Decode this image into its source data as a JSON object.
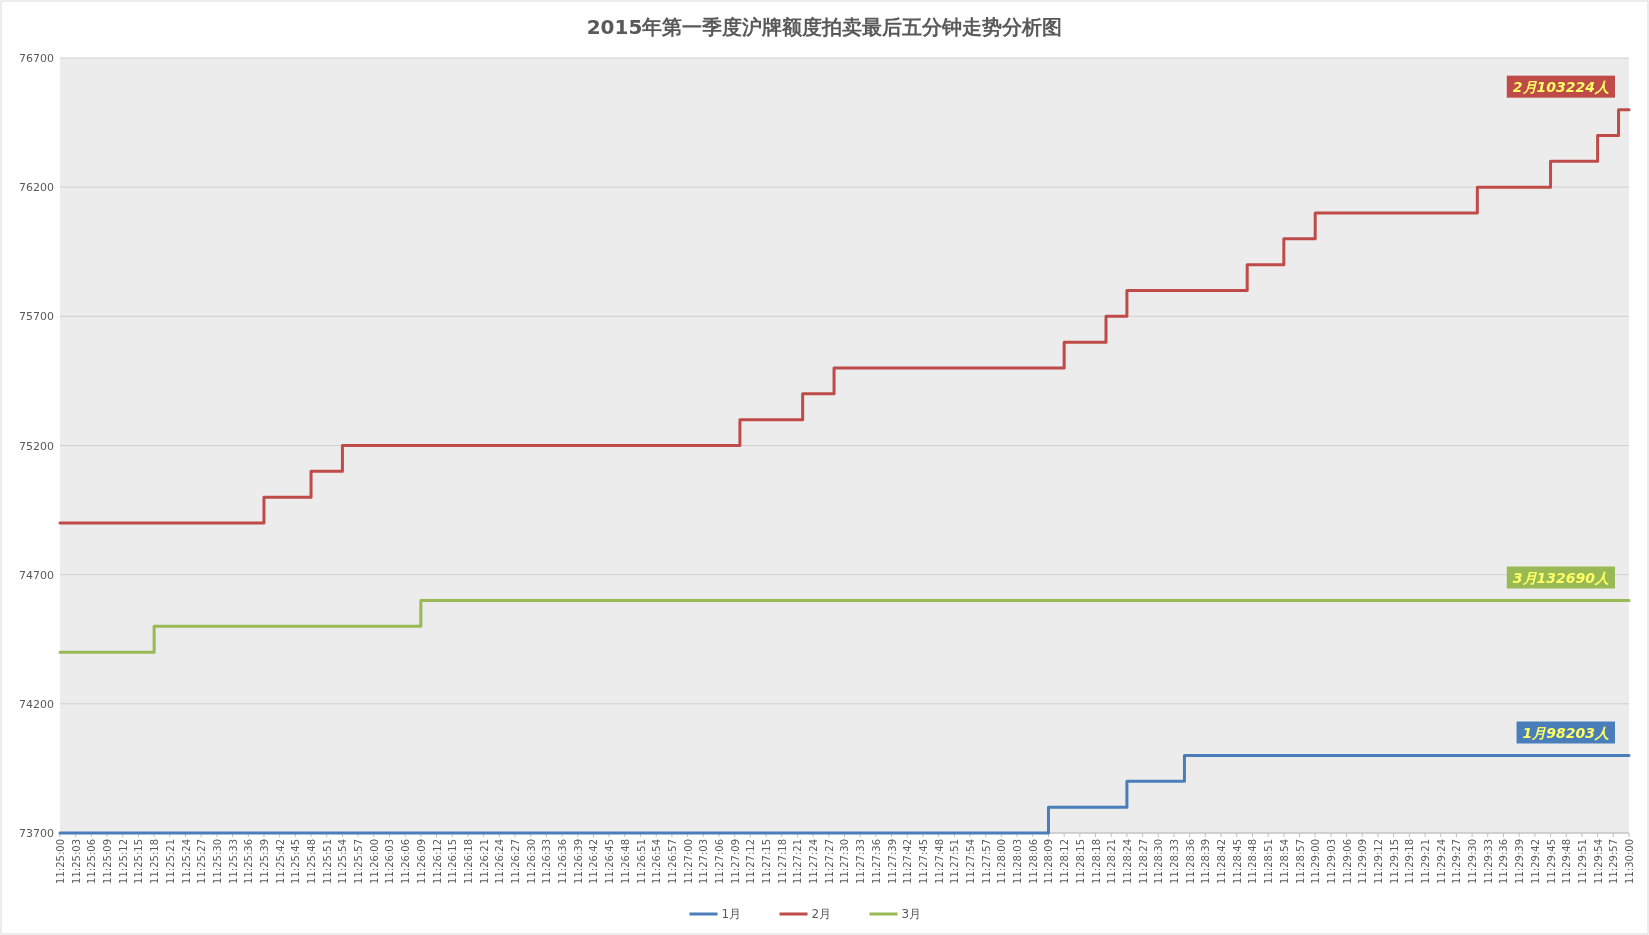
{
  "chart_data": {
    "type": "step",
    "title": "2015年第一季度沪牌额度拍卖最后五分钟走势分析图",
    "series": [
      {
        "name": "1月",
        "color": "#4a7ebb",
        "x": [
          11.416667,
          11.469167,
          11.473333,
          11.476389,
          11.5
        ],
        "values": [
          73700,
          73800,
          73900,
          74000,
          74000
        ]
      },
      {
        "name": "2月",
        "color": "#be4b48",
        "x": [
          11.416667,
          11.4275,
          11.43,
          11.431667,
          11.452778,
          11.456111,
          11.457778,
          11.47,
          11.472222,
          11.473333,
          11.479722,
          11.481667,
          11.483333,
          11.491944,
          11.495833,
          11.498333,
          11.499444,
          11.5
        ],
        "values": [
          74900,
          75000,
          75100,
          75200,
          75300,
          75400,
          75500,
          75600,
          75700,
          75800,
          75900,
          76000,
          76100,
          76200,
          76300,
          76400,
          76500,
          76500
        ]
      },
      {
        "name": "3月",
        "color": "#98b954",
        "x": [
          11.416667,
          11.421667,
          11.435833,
          11.5
        ],
        "values": [
          74400,
          74500,
          74600,
          74600
        ]
      }
    ],
    "annotations": [
      "1月98203人",
      "2月103224人",
      "3月132690人"
    ],
    "xlim": [
      11.416667,
      11.5
    ],
    "xticks": [
      {
        "value": 11.416667,
        "label": "11:25:00"
      },
      {
        "value": 11.4175,
        "label": "11:25:03"
      },
      {
        "value": 11.418333,
        "label": "11:25:06"
      },
      {
        "value": 11.419167,
        "label": "11:25:09"
      },
      {
        "value": 11.42,
        "label": "11:25:12"
      },
      {
        "value": 11.420833,
        "label": "11:25:15"
      },
      {
        "value": 11.421667,
        "label": "11:25:18"
      },
      {
        "value": 11.4225,
        "label": "11:25:21"
      },
      {
        "value": 11.423333,
        "label": "11:25:24"
      },
      {
        "value": 11.424167,
        "label": "11:25:27"
      },
      {
        "value": 11.425,
        "label": "11:25:30"
      },
      {
        "value": 11.425833,
        "label": "11:25:33"
      },
      {
        "value": 11.426667,
        "label": "11:25:36"
      },
      {
        "value": 11.4275,
        "label": "11:25:39"
      },
      {
        "value": 11.428333,
        "label": "11:25:42"
      },
      {
        "value": 11.429167,
        "label": "11:25:45"
      },
      {
        "value": 11.43,
        "label": "11:25:48"
      },
      {
        "value": 11.430833,
        "label": "11:25:51"
      },
      {
        "value": 11.431667,
        "label": "11:25:54"
      },
      {
        "value": 11.4325,
        "label": "11:25:57"
      },
      {
        "value": 11.433333,
        "label": "11:26:00"
      },
      {
        "value": 11.434167,
        "label": "11:26:03"
      },
      {
        "value": 11.435,
        "label": "11:26:06"
      },
      {
        "value": 11.435833,
        "label": "11:26:09"
      },
      {
        "value": 11.436667,
        "label": "11:26:12"
      },
      {
        "value": 11.4375,
        "label": "11:26:15"
      },
      {
        "value": 11.438333,
        "label": "11:26:18"
      },
      {
        "value": 11.439167,
        "label": "11:26:21"
      },
      {
        "value": 11.44,
        "label": "11:26:24"
      },
      {
        "value": 11.440833,
        "label": "11:26:27"
      },
      {
        "value": 11.441667,
        "label": "11:26:30"
      },
      {
        "value": 11.4425,
        "label": "11:26:33"
      },
      {
        "value": 11.443333,
        "label": "11:26:36"
      },
      {
        "value": 11.444167,
        "label": "11:26:39"
      },
      {
        "value": 11.445,
        "label": "11:26:42"
      },
      {
        "value": 11.445833,
        "label": "11:26:45"
      },
      {
        "value": 11.446667,
        "label": "11:26:48"
      },
      {
        "value": 11.4475,
        "label": "11:26:51"
      },
      {
        "value": 11.448333,
        "label": "11:26:54"
      },
      {
        "value": 11.449167,
        "label": "11:26:57"
      },
      {
        "value": 11.45,
        "label": "11:27:00"
      },
      {
        "value": 11.450833,
        "label": "11:27:03"
      },
      {
        "value": 11.451667,
        "label": "11:27:06"
      },
      {
        "value": 11.4525,
        "label": "11:27:09"
      },
      {
        "value": 11.453333,
        "label": "11:27:12"
      },
      {
        "value": 11.454167,
        "label": "11:27:15"
      },
      {
        "value": 11.455,
        "label": "11:27:18"
      },
      {
        "value": 11.455833,
        "label": "11:27:21"
      },
      {
        "value": 11.456667,
        "label": "11:27:24"
      },
      {
        "value": 11.4575,
        "label": "11:27:27"
      },
      {
        "value": 11.458333,
        "label": "11:27:30"
      },
      {
        "value": 11.459167,
        "label": "11:27:33"
      },
      {
        "value": 11.46,
        "label": "11:27:36"
      },
      {
        "value": 11.460833,
        "label": "11:27:39"
      },
      {
        "value": 11.461667,
        "label": "11:27:42"
      },
      {
        "value": 11.4625,
        "label": "11:27:45"
      },
      {
        "value": 11.463333,
        "label": "11:27:48"
      },
      {
        "value": 11.464167,
        "label": "11:27:51"
      },
      {
        "value": 11.465,
        "label": "11:27:54"
      },
      {
        "value": 11.465833,
        "label": "11:27:57"
      },
      {
        "value": 11.466667,
        "label": "11:28:00"
      },
      {
        "value": 11.4675,
        "label": "11:28:03"
      },
      {
        "value": 11.468333,
        "label": "11:28:06"
      },
      {
        "value": 11.469167,
        "label": "11:28:09"
      },
      {
        "value": 11.47,
        "label": "11:28:12"
      },
      {
        "value": 11.470833,
        "label": "11:28:15"
      },
      {
        "value": 11.471667,
        "label": "11:28:18"
      },
      {
        "value": 11.4725,
        "label": "11:28:21"
      },
      {
        "value": 11.473333,
        "label": "11:28:24"
      },
      {
        "value": 11.474167,
        "label": "11:28:27"
      },
      {
        "value": 11.475,
        "label": "11:28:30"
      },
      {
        "value": 11.475833,
        "label": "11:28:33"
      },
      {
        "value": 11.476667,
        "label": "11:28:36"
      },
      {
        "value": 11.4775,
        "label": "11:28:39"
      },
      {
        "value": 11.478333,
        "label": "11:28:42"
      },
      {
        "value": 11.479167,
        "label": "11:28:45"
      },
      {
        "value": 11.48,
        "label": "11:28:48"
      },
      {
        "value": 11.480833,
        "label": "11:28:51"
      },
      {
        "value": 11.481667,
        "label": "11:28:54"
      },
      {
        "value": 11.4825,
        "label": "11:28:57"
      },
      {
        "value": 11.483333,
        "label": "11:29:00"
      },
      {
        "value": 11.484167,
        "label": "11:29:03"
      },
      {
        "value": 11.485,
        "label": "11:29:06"
      },
      {
        "value": 11.485833,
        "label": "11:29:09"
      },
      {
        "value": 11.486667,
        "label": "11:29:12"
      },
      {
        "value": 11.4875,
        "label": "11:29:15"
      },
      {
        "value": 11.488333,
        "label": "11:29:18"
      },
      {
        "value": 11.489167,
        "label": "11:29:21"
      },
      {
        "value": 11.49,
        "label": "11:29:24"
      },
      {
        "value": 11.490833,
        "label": "11:29:27"
      },
      {
        "value": 11.491667,
        "label": "11:29:30"
      },
      {
        "value": 11.4925,
        "label": "11:29:33"
      },
      {
        "value": 11.493333,
        "label": "11:29:36"
      },
      {
        "value": 11.494167,
        "label": "11:29:39"
      },
      {
        "value": 11.495,
        "label": "11:29:42"
      },
      {
        "value": 11.495833,
        "label": "11:29:45"
      },
      {
        "value": 11.496667,
        "label": "11:29:48"
      },
      {
        "value": 11.4975,
        "label": "11:29:51"
      },
      {
        "value": 11.498333,
        "label": "11:29:54"
      },
      {
        "value": 11.499167,
        "label": "11:29:57"
      },
      {
        "value": 11.5,
        "label": "11:30:00"
      }
    ],
    "ylim": [
      73700,
      76700
    ],
    "yticks": [
      73700,
      74200,
      74700,
      75200,
      75700,
      76200,
      76700
    ],
    "grid": "y",
    "legend": "bottom"
  }
}
